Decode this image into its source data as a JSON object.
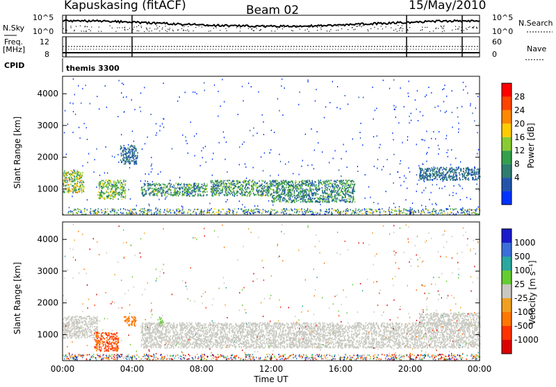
{
  "header": {
    "station": "Kapuskasing (fitACF)",
    "beam": "Beam 02",
    "date": "15/May/2010"
  },
  "noise_panel": {
    "left_label": "N.Sky",
    "right_label": "N.Search",
    "left_ticks": [
      "10^5",
      "10^0"
    ],
    "right_ticks": [
      "10^5",
      "10^0"
    ]
  },
  "freq_panel": {
    "left_label_1": "Freq.",
    "left_label_2": "[MHz]",
    "right_label": "Nave",
    "left_ticks": [
      "12",
      "8"
    ],
    "right_ticks": [
      "60",
      "0"
    ]
  },
  "cpid_panel": {
    "label": "CPID",
    "mode": "themis 3300"
  },
  "x_axis": {
    "label": "Time UT",
    "ticks": [
      "00:00",
      "04:00",
      "08:00",
      "12:00",
      "16:00",
      "20:00",
      "00:00"
    ]
  },
  "power_panel": {
    "ylabel": "Slant Range [km]",
    "yticks": [
      "4000",
      "3000",
      "2000",
      "1000"
    ],
    "colorbar_label": "Power [dB]",
    "colorbar_ticks": [
      "28",
      "24",
      "20",
      "16",
      "12",
      "8",
      "4"
    ]
  },
  "velocity_panel": {
    "ylabel": "Slant Range [km]",
    "yticks": [
      "4000",
      "3000",
      "2000",
      "1000"
    ],
    "colorbar_label": "Velocity [m s⁻¹]",
    "colorbar_ticks": [
      "1000",
      "500",
      "100",
      "25",
      "-25",
      "-100",
      "-500",
      "-1000"
    ]
  },
  "colors": {
    "power_scale": [
      "#0033ff",
      "#2255aa",
      "#2e7d6e",
      "#33a04a",
      "#88cc33",
      "#ffcc00",
      "#ff8800",
      "#ff4400",
      "#ff0000"
    ],
    "velocity_scale": [
      "#1a1acc",
      "#3b6fd9",
      "#2aa8a0",
      "#66cc33",
      "#c8c8c0",
      "#f0a020",
      "#ff7700",
      "#ff3300",
      "#dd0000"
    ]
  },
  "chart_data": [
    {
      "type": "heatmap",
      "title": "Power",
      "xlabel": "Time UT",
      "ylabel": "Slant Range [km]",
      "xlim": [
        0,
        24
      ],
      "ylim": [
        180,
        4550
      ],
      "colorbar": {
        "label": "Power [dB]",
        "range": [
          0,
          32
        ]
      },
      "features": [
        {
          "t": [
            0.0,
            1.2
          ],
          "range_km": [
            900,
            1600
          ],
          "power_db": [
            8,
            24
          ]
        },
        {
          "t": [
            2.0,
            3.6
          ],
          "range_km": [
            700,
            1300
          ],
          "power_db": [
            8,
            20
          ]
        },
        {
          "t": [
            3.3,
            4.3
          ],
          "range_km": [
            1800,
            2400
          ],
          "power_db": [
            4,
            10
          ]
        },
        {
          "t": [
            4.5,
            8.3
          ],
          "range_km": [
            800,
            1200
          ],
          "power_db": [
            4,
            18
          ]
        },
        {
          "t": [
            8.5,
            12.0
          ],
          "range_km": [
            800,
            1300
          ],
          "power_db": [
            4,
            18
          ]
        },
        {
          "t": [
            12.0,
            16.8
          ],
          "range_km": [
            600,
            1300
          ],
          "power_db": [
            4,
            16
          ]
        },
        {
          "t": [
            20.5,
            24.0
          ],
          "range_km": [
            1300,
            1700
          ],
          "power_db": [
            4,
            10
          ]
        }
      ]
    },
    {
      "type": "heatmap",
      "title": "Velocity",
      "xlabel": "Time UT",
      "ylabel": "Slant Range [km]",
      "xlim": [
        0,
        24
      ],
      "ylim": [
        180,
        4550
      ],
      "colorbar": {
        "label": "Velocity [m s⁻¹]",
        "range": [
          -1000,
          1000
        ]
      },
      "features": [
        {
          "t": [
            0.0,
            2.0
          ],
          "range_km": [
            900,
            1600
          ],
          "velocity": [
            -25,
            25
          ]
        },
        {
          "t": [
            1.8,
            3.2
          ],
          "range_km": [
            500,
            1100
          ],
          "velocity": [
            -1000,
            -100
          ]
        },
        {
          "t": [
            3.5,
            4.2
          ],
          "range_km": [
            1300,
            1600
          ],
          "velocity": [
            -500,
            -100
          ]
        },
        {
          "t": [
            5.5,
            5.8
          ],
          "range_km": [
            1300,
            1600
          ],
          "velocity": [
            25,
            100
          ]
        },
        {
          "t": [
            4.5,
            24.0
          ],
          "range_km": [
            600,
            1400
          ],
          "velocity": [
            -25,
            25
          ]
        },
        {
          "t": [
            20.5,
            24.0
          ],
          "range_km": [
            1300,
            1700
          ],
          "velocity": [
            -25,
            25
          ]
        }
      ]
    }
  ]
}
